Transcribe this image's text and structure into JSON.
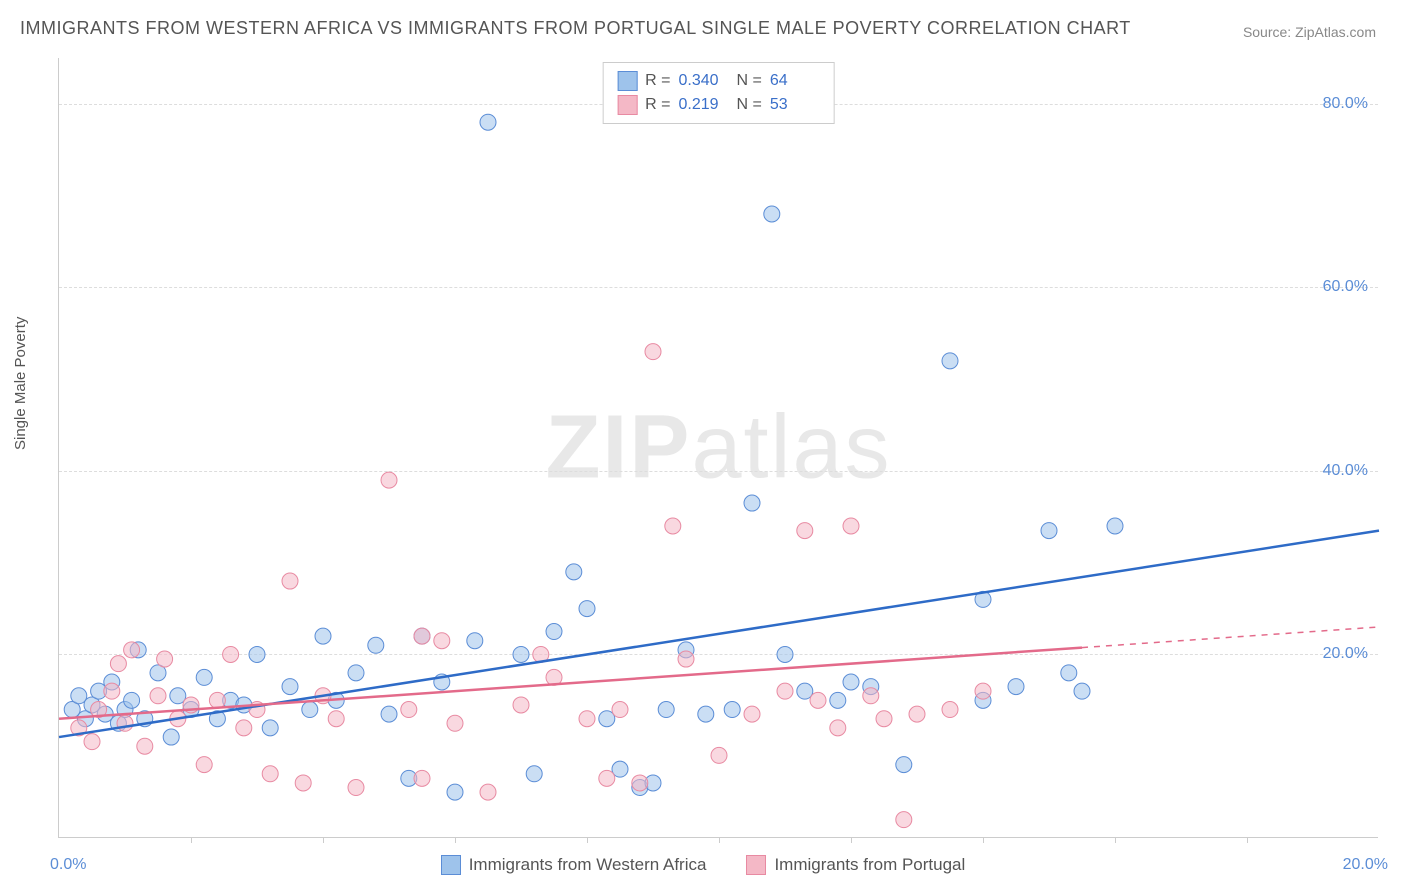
{
  "title": "IMMIGRANTS FROM WESTERN AFRICA VS IMMIGRANTS FROM PORTUGAL SINGLE MALE POVERTY CORRELATION CHART",
  "source": "Source: ZipAtlas.com",
  "y_axis_label": "Single Male Poverty",
  "watermark": "ZIPatlas",
  "chart": {
    "type": "scatter",
    "xlim": [
      0,
      20
    ],
    "ylim": [
      0,
      85
    ],
    "x_ticks": [
      0,
      20
    ],
    "x_tick_labels": [
      "0.0%",
      "20.0%"
    ],
    "y_ticks": [
      20,
      40,
      60,
      80
    ],
    "y_tick_labels": [
      "20.0%",
      "40.0%",
      "60.0%",
      "80.0%"
    ],
    "x_minor_ticks": [
      2,
      4,
      6,
      8,
      10,
      12,
      14,
      16,
      18
    ],
    "background_color": "#ffffff",
    "grid_color": "#dddddd",
    "marker_radius": 8,
    "marker_opacity": 0.55,
    "series": [
      {
        "name": "Immigrants from Western Africa",
        "fill_color": "#9ec3eb",
        "stroke_color": "#5b8dd6",
        "line_color": "#2e6bc7",
        "r_value": "0.340",
        "n_value": "64",
        "trend": {
          "x1": 0,
          "y1": 11.0,
          "x2": 20,
          "y2": 33.5,
          "dash_from_x": null
        },
        "points": [
          [
            0.2,
            14.0
          ],
          [
            0.3,
            15.5
          ],
          [
            0.4,
            13.0
          ],
          [
            0.5,
            14.5
          ],
          [
            0.6,
            16.0
          ],
          [
            0.7,
            13.5
          ],
          [
            0.8,
            17.0
          ],
          [
            0.9,
            12.5
          ],
          [
            1.0,
            14.0
          ],
          [
            1.1,
            15.0
          ],
          [
            1.2,
            20.5
          ],
          [
            1.3,
            13.0
          ],
          [
            1.5,
            18.0
          ],
          [
            1.7,
            11.0
          ],
          [
            1.8,
            15.5
          ],
          [
            2.0,
            14.0
          ],
          [
            2.2,
            17.5
          ],
          [
            2.4,
            13.0
          ],
          [
            2.6,
            15.0
          ],
          [
            2.8,
            14.5
          ],
          [
            3.0,
            20.0
          ],
          [
            3.2,
            12.0
          ],
          [
            3.5,
            16.5
          ],
          [
            3.8,
            14.0
          ],
          [
            4.0,
            22.0
          ],
          [
            4.2,
            15.0
          ],
          [
            4.5,
            18.0
          ],
          [
            4.8,
            21.0
          ],
          [
            5.0,
            13.5
          ],
          [
            5.3,
            6.5
          ],
          [
            5.5,
            22.0
          ],
          [
            5.8,
            17.0
          ],
          [
            6.0,
            5.0
          ],
          [
            6.3,
            21.5
          ],
          [
            6.5,
            78.0
          ],
          [
            7.0,
            20.0
          ],
          [
            7.2,
            7.0
          ],
          [
            7.5,
            22.5
          ],
          [
            7.8,
            29.0
          ],
          [
            8.0,
            25.0
          ],
          [
            8.3,
            13.0
          ],
          [
            8.5,
            7.5
          ],
          [
            8.8,
            5.5
          ],
          [
            9.0,
            6.0
          ],
          [
            9.2,
            14.0
          ],
          [
            9.5,
            20.5
          ],
          [
            9.8,
            13.5
          ],
          [
            10.2,
            14.0
          ],
          [
            10.5,
            36.5
          ],
          [
            10.8,
            68.0
          ],
          [
            11.0,
            20.0
          ],
          [
            11.3,
            16.0
          ],
          [
            11.8,
            15.0
          ],
          [
            12.0,
            17.0
          ],
          [
            12.3,
            16.5
          ],
          [
            12.8,
            8.0
          ],
          [
            13.5,
            52.0
          ],
          [
            14.0,
            26.0
          ],
          [
            14.5,
            16.5
          ],
          [
            15.0,
            33.5
          ],
          [
            15.3,
            18.0
          ],
          [
            15.5,
            16.0
          ],
          [
            16.0,
            34.0
          ],
          [
            14.0,
            15.0
          ]
        ]
      },
      {
        "name": "Immigrants from Portugal",
        "fill_color": "#f4b8c6",
        "stroke_color": "#e88aa2",
        "line_color": "#e36a8a",
        "r_value": "0.219",
        "n_value": "53",
        "trend": {
          "x1": 0,
          "y1": 13.0,
          "x2": 20,
          "y2": 23.0,
          "dash_from_x": 15.5
        },
        "points": [
          [
            0.3,
            12.0
          ],
          [
            0.5,
            10.5
          ],
          [
            0.6,
            14.0
          ],
          [
            0.8,
            16.0
          ],
          [
            0.9,
            19.0
          ],
          [
            1.0,
            12.5
          ],
          [
            1.1,
            20.5
          ],
          [
            1.3,
            10.0
          ],
          [
            1.5,
            15.5
          ],
          [
            1.6,
            19.5
          ],
          [
            1.8,
            13.0
          ],
          [
            2.0,
            14.5
          ],
          [
            2.2,
            8.0
          ],
          [
            2.4,
            15.0
          ],
          [
            2.6,
            20.0
          ],
          [
            2.8,
            12.0
          ],
          [
            3.0,
            14.0
          ],
          [
            3.2,
            7.0
          ],
          [
            3.5,
            28.0
          ],
          [
            3.7,
            6.0
          ],
          [
            4.0,
            15.5
          ],
          [
            4.2,
            13.0
          ],
          [
            4.5,
            5.5
          ],
          [
            5.0,
            39.0
          ],
          [
            5.3,
            14.0
          ],
          [
            5.5,
            22.0
          ],
          [
            5.8,
            21.5
          ],
          [
            6.0,
            12.5
          ],
          [
            6.5,
            5.0
          ],
          [
            7.0,
            14.5
          ],
          [
            7.3,
            20.0
          ],
          [
            7.5,
            17.5
          ],
          [
            8.0,
            13.0
          ],
          [
            8.3,
            6.5
          ],
          [
            8.5,
            14.0
          ],
          [
            9.0,
            53.0
          ],
          [
            9.3,
            34.0
          ],
          [
            9.5,
            19.5
          ],
          [
            10.0,
            9.0
          ],
          [
            10.5,
            13.5
          ],
          [
            11.0,
            16.0
          ],
          [
            11.3,
            33.5
          ],
          [
            11.5,
            15.0
          ],
          [
            11.8,
            12.0
          ],
          [
            12.0,
            34.0
          ],
          [
            12.3,
            15.5
          ],
          [
            12.5,
            13.0
          ],
          [
            12.8,
            2.0
          ],
          [
            13.0,
            13.5
          ],
          [
            13.5,
            14.0
          ],
          [
            14.0,
            16.0
          ],
          [
            5.5,
            6.5
          ],
          [
            8.8,
            6.0
          ]
        ]
      }
    ]
  },
  "legend_stats": {
    "r_label": "R =",
    "n_label": "N ="
  }
}
